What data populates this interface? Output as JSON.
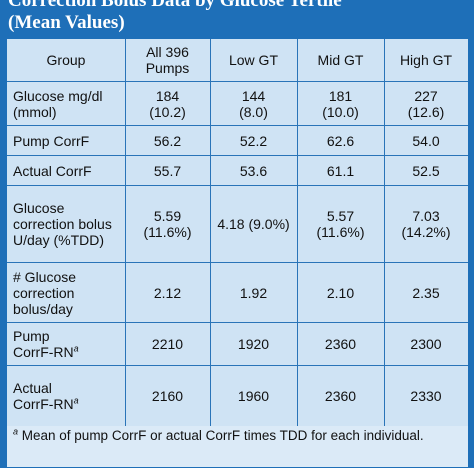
{
  "title": {
    "line1": "Correction Bolus Data by Glucose Tertile",
    "line2": "(Mean Values)"
  },
  "columns": [
    "Group",
    "All 396 Pumps",
    "Low GT",
    "Mid GT",
    "High GT"
  ],
  "rows": [
    {
      "label": "Glucose mg/dl (mmol)",
      "label_sup": "",
      "values": [
        "184 (10.2)",
        "144 (8.0)",
        "181 (10.0)",
        "227 (12.6)"
      ]
    },
    {
      "label": "Pump CorrF",
      "label_sup": "",
      "values": [
        "56.2",
        "52.2",
        "62.6",
        "54.0"
      ]
    },
    {
      "label": "Actual CorrF",
      "label_sup": "",
      "values": [
        "55.7",
        "53.6",
        "61.1",
        "52.5"
      ]
    },
    {
      "label": "Glucose correction bolus U/day (%TDD)",
      "label_sup": "",
      "values": [
        "5.59 (11.6%)",
        "4.18 (9.0%)",
        "5.57 (11.6%)",
        "7.03 (14.2%)"
      ]
    },
    {
      "label": "# Glucose correction bolus/day",
      "label_sup": "",
      "values": [
        "2.12",
        "1.92",
        "2.10",
        "2.35"
      ]
    },
    {
      "label": "Pump CorrF-RN",
      "label_sup": "a",
      "values": [
        "2210",
        "1920",
        "2360",
        "2300"
      ]
    },
    {
      "label": "Actual CorrF-RN",
      "label_sup": "a",
      "values": [
        "2160",
        "1960",
        "2360",
        "2330"
      ]
    }
  ],
  "footnote": {
    "marker": "a",
    "text": " Mean of pump CorrF or actual CorrF times TDD for each individual."
  }
}
